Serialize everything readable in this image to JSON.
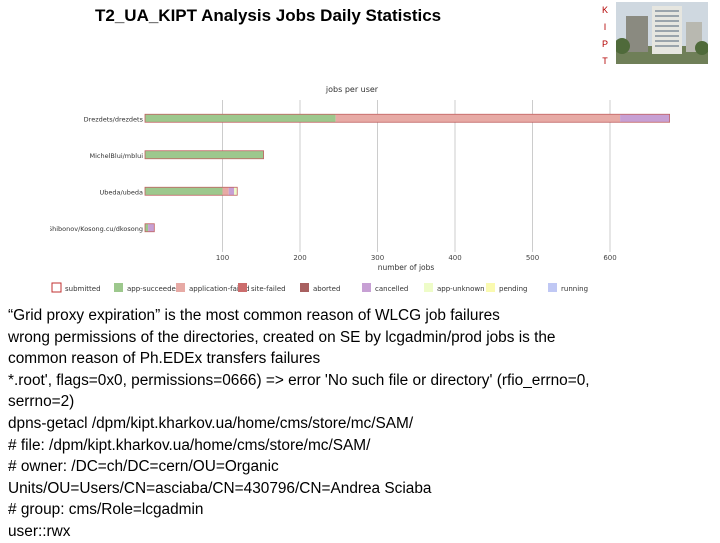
{
  "slide": {
    "title": "T2_UA_KIPT Analysis Jobs Daily Statistics",
    "logo_letters": [
      "K",
      "I",
      "P",
      "T"
    ]
  },
  "chart_data": {
    "type": "bar",
    "orientation": "horizontal",
    "stacked": true,
    "title": "jobs per user",
    "xlabel": "number of jobs",
    "ylabel": "",
    "xlim": [
      0,
      680
    ],
    "xticks": [
      100,
      200,
      300,
      400,
      500,
      600
    ],
    "grid": true,
    "legend_position": "bottom",
    "categories": [
      "Drezdets/drezdets",
      "MichelBlui/mblui",
      "Ubeda/ubeda",
      "Shibonov/Kosong.cu/dkosong"
    ],
    "series": [
      {
        "name": "submitted",
        "color": "#ffffff",
        "values": [
          0,
          0,
          0,
          0
        ]
      },
      {
        "name": "app-succeeded",
        "color": "#9dc88d",
        "values": [
          246,
          153,
          100,
          4
        ]
      },
      {
        "name": "application-failed",
        "color": "#e7aaa5",
        "values": [
          367,
          0,
          8,
          0
        ]
      },
      {
        "name": "site-failed",
        "color": "#cc6d6d",
        "values": [
          0,
          0,
          0,
          0
        ]
      },
      {
        "name": "aborted",
        "color": "#a86060",
        "values": [
          0,
          0,
          0,
          0
        ]
      },
      {
        "name": "cancelled",
        "color": "#c7a0d4",
        "values": [
          64,
          0,
          7,
          8
        ]
      },
      {
        "name": "app-unknown",
        "color": "#eefcc8",
        "values": [
          0,
          0,
          4,
          0
        ]
      },
      {
        "name": "pending",
        "color": "#fafab0",
        "values": [
          0,
          0,
          0,
          0
        ]
      },
      {
        "name": "running",
        "color": "#c0c8f4",
        "values": [
          0,
          0,
          0,
          0
        ]
      }
    ]
  },
  "body": {
    "lines": [
      "“Grid proxy expiration” is the most common reason of WLCG job failures",
      "wrong permissions of the directories, created on SE by lcgadmin/prod jobs is the",
      "common reason of Ph.EDEx transfers failures",
      "*.root', flags=0x0, permissions=0666) => error 'No such file or directory' (rfio_errno=0,",
      "serrno=2)",
      "dpns-getacl /dpm/kipt.kharkov.ua/home/cms/store/mc/SAM/",
      "# file: /dpm/kipt.kharkov.ua/home/cms/store/mc/SAM/",
      "# owner: /DC=ch/DC=cern/OU=Organic",
      "Units/OU=Users/CN=asciaba/CN=430796/CN=Andrea Sciaba",
      "# group: cms/Role=lcgadmin",
      "user::rwx"
    ]
  }
}
